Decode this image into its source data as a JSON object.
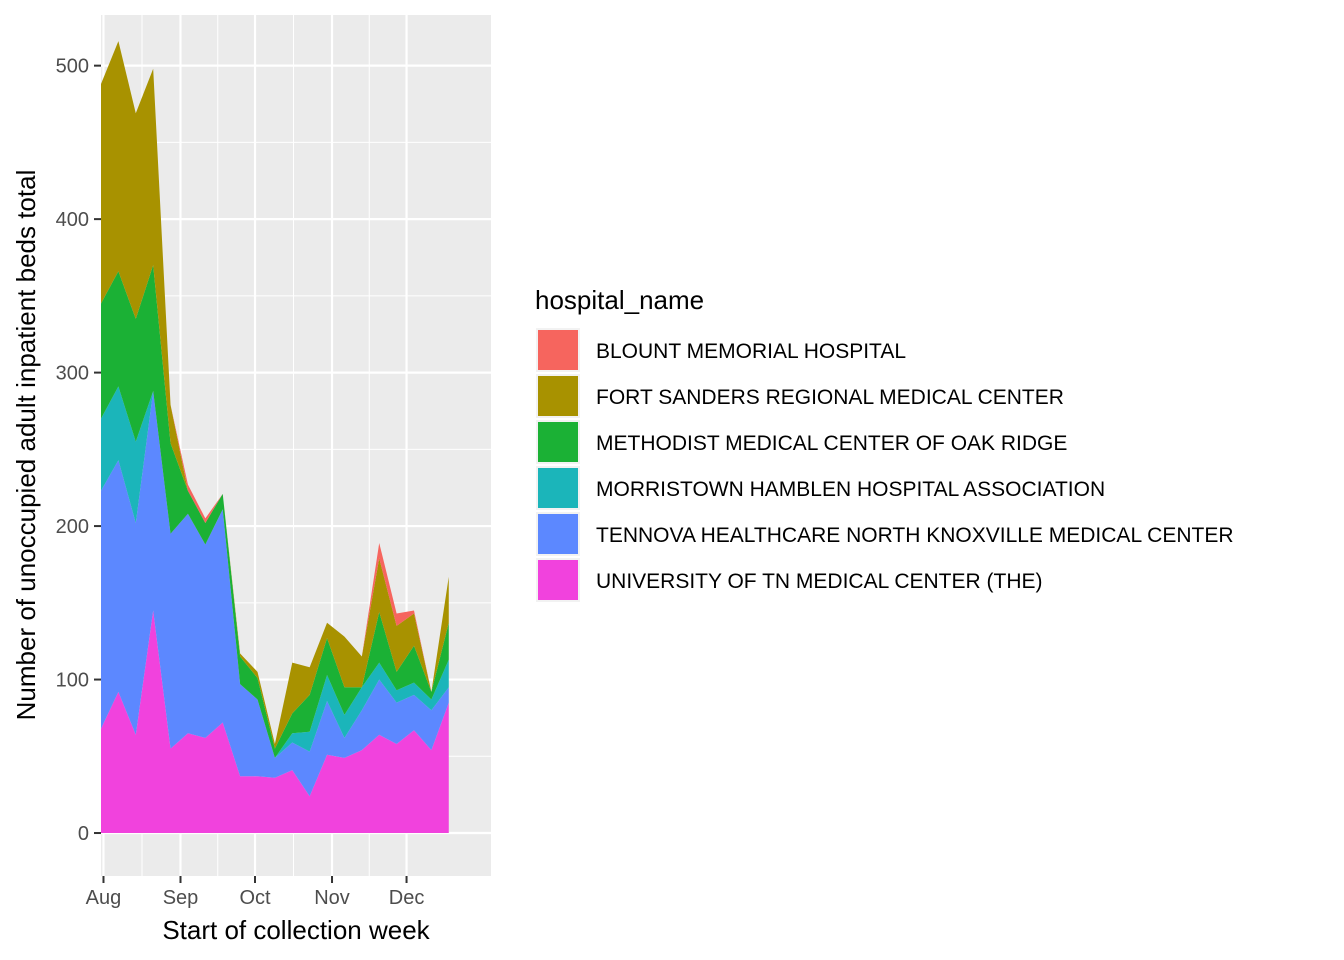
{
  "chart_data": {
    "type": "area",
    "stacked": true,
    "xlabel": "Start of collection week",
    "ylabel": "Number of unoccupied adult inpatient beds total",
    "ylim": [
      -28,
      533
    ],
    "y_ticks": [
      0,
      100,
      200,
      300,
      400,
      500
    ],
    "x_range": [
      "2020-07-31",
      "2021-01-04"
    ],
    "x_ticks": [
      {
        "date": "2020-08-01",
        "label": "Aug"
      },
      {
        "date": "2020-09-01",
        "label": "Sep"
      },
      {
        "date": "2020-10-01",
        "label": "Oct"
      },
      {
        "date": "2020-11-01",
        "label": "Nov"
      },
      {
        "date": "2020-12-01",
        "label": "Dec"
      }
    ],
    "grid": true,
    "legend_title": "hospital_name",
    "legend_position": "right",
    "x": [
      "2020-07-31",
      "2020-08-07",
      "2020-08-14",
      "2020-08-21",
      "2020-08-28",
      "2020-09-04",
      "2020-09-11",
      "2020-09-18",
      "2020-09-25",
      "2020-10-02",
      "2020-10-09",
      "2020-10-16",
      "2020-10-23",
      "2020-10-30",
      "2020-11-06",
      "2020-11-13",
      "2020-11-20",
      "2020-11-27",
      "2020-12-04",
      "2020-12-11",
      "2020-12-18"
    ],
    "series": [
      {
        "name": "UNIVERSITY OF TN MEDICAL CENTER (THE)",
        "color": "#F142DD",
        "values": [
          68,
          92,
          64,
          145,
          55,
          65,
          62,
          72,
          37,
          37,
          36,
          41,
          24,
          51,
          49,
          54,
          64,
          58,
          67,
          54,
          85
        ]
      },
      {
        "name": "TENNOVA HEALTHCARE NORTH KNOXVILLE MEDICAL CENTER",
        "color": "#5C88FF",
        "values": [
          155,
          151,
          138,
          143,
          140,
          143,
          126,
          139,
          60,
          50,
          13,
          18,
          29,
          35,
          13,
          26,
          36,
          27,
          23,
          26,
          10
        ]
      },
      {
        "name": "MORRISTOWN HAMBLEN HOSPITAL ASSOCIATION",
        "color": "#1BB5BA",
        "values": [
          47,
          48,
          53,
          0,
          0,
          0,
          0,
          0,
          0,
          0,
          0,
          6,
          13,
          17,
          15,
          15,
          11,
          8,
          8,
          7,
          18
        ]
      },
      {
        "name": "METHODIST MEDICAL CENTER OF OAK RIDGE",
        "color": "#1BB135",
        "values": [
          75,
          75,
          80,
          82,
          59,
          15,
          14,
          10,
          18,
          14,
          6,
          13,
          24,
          24,
          18,
          0,
          33,
          12,
          24,
          5,
          24
        ]
      },
      {
        "name": "FORT SANDERS REGIONAL MEDICAL CENTER",
        "color": "#A89200",
        "values": [
          143,
          150,
          134,
          128,
          25,
          0,
          0,
          0,
          2,
          4,
          3,
          33,
          18,
          10,
          33,
          20,
          35,
          30,
          21,
          0,
          30
        ]
      },
      {
        "name": "BLOUNT MEMORIAL HOSPITAL",
        "color": "#F6655E",
        "values": [
          0,
          0,
          0,
          0,
          0,
          4,
          3,
          0,
          0,
          0,
          0,
          0,
          0,
          0,
          0,
          0,
          10,
          8,
          2,
          0,
          0
        ]
      }
    ],
    "legend_order": [
      "BLOUNT MEMORIAL HOSPITAL",
      "FORT SANDERS REGIONAL MEDICAL CENTER",
      "METHODIST MEDICAL CENTER OF OAK RIDGE",
      "MORRISTOWN HAMBLEN HOSPITAL ASSOCIATION",
      "TENNOVA HEALTHCARE NORTH KNOXVILLE MEDICAL CENTER",
      "UNIVERSITY OF TN MEDICAL CENTER (THE)"
    ]
  }
}
